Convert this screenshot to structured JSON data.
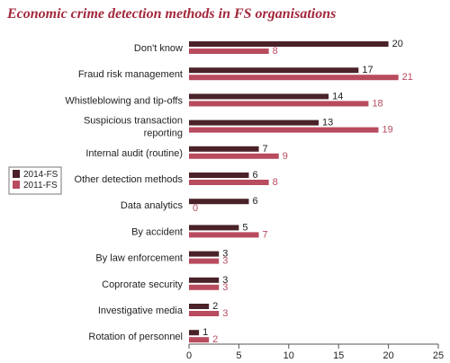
{
  "chart_data": {
    "type": "bar",
    "orientation": "horizontal",
    "title": "Economic crime detection methods in FS organisations",
    "categories": [
      "Don't know",
      "Fraud risk management",
      "Whistleblowing and tip-offs",
      "Suspicious transaction reporting",
      "Internal audit (routine)",
      "Other detection methods",
      "Data analytics",
      "By accident",
      "By law enforcement",
      "Coprorate security",
      "Investigative media",
      "Rotation of personnel"
    ],
    "series": [
      {
        "name": "2014-FS",
        "color": "#4a2228",
        "values": [
          20,
          17,
          14,
          13,
          7,
          6,
          6,
          5,
          3,
          3,
          2,
          1
        ]
      },
      {
        "name": "2011-FS",
        "color": "#b94b5f",
        "values": [
          8,
          21,
          18,
          19,
          9,
          8,
          0,
          7,
          3,
          3,
          3,
          2
        ]
      }
    ],
    "xlim": [
      0,
      25
    ],
    "xticks": [
      "0",
      "5",
      "10",
      "15",
      "20",
      "25"
    ],
    "grid": false,
    "legend_position": "left"
  }
}
